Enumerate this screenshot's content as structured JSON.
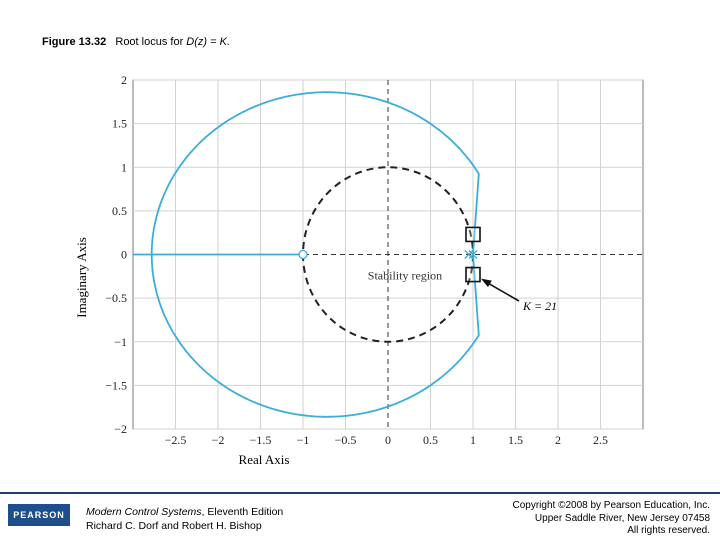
{
  "figure": {
    "label": "Figure 13.32",
    "caption_prefix": "Root locus for ",
    "caption_math": "D(z) = K."
  },
  "chart_data": {
    "type": "line",
    "title": "",
    "xlabel": "Real Axis",
    "ylabel": "Imaginary Axis",
    "xlim": [
      -3.0,
      3.0
    ],
    "ylim": [
      -2,
      2
    ],
    "xticks": [
      -2.5,
      -2,
      -1.5,
      -1,
      -0.5,
      0,
      0.5,
      1,
      1.5,
      2,
      2.5
    ],
    "xtick_labels": [
      "−2.5",
      "−2",
      "−1.5",
      "−1",
      "−0.5",
      "0",
      "0.5",
      "1",
      "1.5",
      "2",
      "2.5"
    ],
    "yticks": [
      2,
      1.5,
      1,
      0.5,
      0,
      -0.5,
      -1,
      -1.5,
      -2
    ],
    "ytick_labels": [
      "2",
      "1.5",
      "1",
      "0.5",
      "0",
      "−0.5",
      "−1",
      "−1.5",
      "−2"
    ],
    "grid": true,
    "locus": {
      "color": "#3aaed8",
      "circle_center": [
        0,
        0
      ],
      "circle_radius_estimate": 1.86,
      "real_axis_branch": {
        "x": [
          -3.0,
          -1
        ],
        "y": [
          0,
          0
        ]
      },
      "breakaway_points": [
        1,
        -1
      ]
    },
    "zero": {
      "x": -1,
      "y": 0
    },
    "poles": [
      {
        "x": 0.95,
        "y": 0
      },
      {
        "x": 1.0,
        "y": 0
      }
    ],
    "unit_circle": {
      "center": [
        0,
        0
      ],
      "radius": 1,
      "style": "dashed",
      "label": "Stability region"
    },
    "markers": [
      {
        "x": 1.0,
        "y": 0.23
      },
      {
        "x": 1.0,
        "y": -0.23
      }
    ],
    "annotation": {
      "text": "K = 21",
      "target": [
        1.0,
        -0.23
      ]
    }
  },
  "footer": {
    "logo_text": "PEARSON",
    "book_title": "Modern Control Systems",
    "book_edition": ", Eleventh Edition",
    "authors": "Richard C. Dorf and Robert H. Bishop",
    "copyright_line1": "Copyright ©2008 by Pearson Education, Inc.",
    "copyright_line2": "Upper Saddle River, New Jersey 07458",
    "copyright_line3": "All rights reserved."
  }
}
